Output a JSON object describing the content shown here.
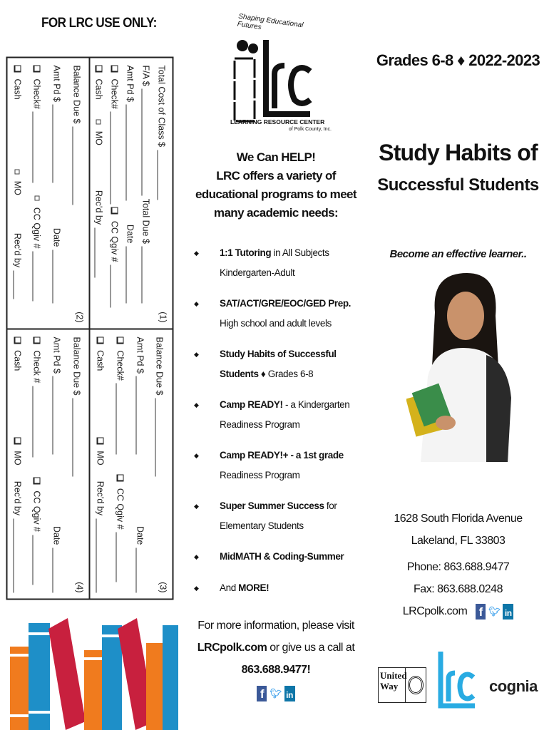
{
  "header": {
    "lrc_use_only": "FOR LRC USE ONLY:"
  },
  "form": {
    "sections": [
      {
        "number": "(1)",
        "rows": [
          [
            {
              "t": "Total Cost of Class $"
            },
            {
              "line": 70
            }
          ],
          [
            {
              "t": "F/A $"
            },
            {
              "line": 150
            },
            {
              "t": "Total Due $"
            },
            {
              "line": 80
            }
          ],
          [
            {
              "t": "Amt Pd $"
            },
            {
              "line": 135
            },
            {
              "gap": 25
            },
            {
              "t": "Date"
            },
            {
              "line": 80
            }
          ],
          [
            {
              "cb": "big"
            },
            {
              "t": "Check#"
            },
            {
              "line": 130
            },
            {
              "cb": "big"
            },
            {
              "t": "CC  Qgiv #"
            },
            {
              "line": 60
            }
          ],
          [
            {
              "cb": "big"
            },
            {
              "t": "Cash"
            },
            {
              "gap": 20
            },
            {
              "cb": "small"
            },
            {
              "t": "MO"
            },
            {
              "gap": 55
            },
            {
              "t": "Rec'd by"
            },
            {
              "line": 70
            }
          ]
        ]
      },
      {
        "number": "(2)",
        "rows": [
          [
            {
              "t": "Balance Due $"
            },
            {
              "line": 110
            }
          ],
          [
            {
              "t": "Amt Pd $"
            },
            {
              "line": 110
            },
            {
              "gap": 55
            },
            {
              "t": "Date"
            },
            {
              "line": 75
            }
          ],
          [
            {
              "cb": "big"
            },
            {
              "t": "Check#"
            },
            {
              "line": 100
            },
            {
              "gap": 10
            },
            {
              "cb": "small"
            },
            {
              "t": "CC  Qgiv #"
            },
            {
              "line": 70
            }
          ],
          [
            {
              "cb": "big"
            },
            {
              "t": "Cash"
            },
            {
              "gap": 90
            },
            {
              "cb": "small"
            },
            {
              "t": "MO"
            },
            {
              "gap": 45
            },
            {
              "t": "Rec'd by"
            },
            {
              "line": 40
            }
          ]
        ]
      },
      {
        "number": "(3)",
        "rows": [
          [
            {
              "t": "Balance Due $"
            },
            {
              "line": 110
            }
          ],
          [
            {
              "t": "Amt Pd $"
            },
            {
              "line": 130
            },
            {
              "gap": 110
            },
            {
              "t": "Date"
            },
            {
              "line": 75
            }
          ],
          [
            {
              "cb": "big"
            },
            {
              "t": "Check#"
            },
            {
              "line": 100
            },
            {
              "gap": 20
            },
            {
              "cb": "big"
            },
            {
              "t": "CC  Qgiv #"
            },
            {
              "line": 70
            }
          ],
          [
            {
              "cb": "big"
            },
            {
              "t": "Cash"
            },
            {
              "gap": 90
            },
            {
              "cb": "big"
            },
            {
              "t": "MO"
            },
            {
              "gap": 15
            },
            {
              "t": "Rec'd by"
            },
            {
              "line": 110
            }
          ]
        ]
      },
      {
        "number": "(4)",
        "rows": [
          [
            {
              "t": "Balance Due $"
            },
            {
              "line": 110
            }
          ],
          [
            {
              "t": "Amt Pd $"
            },
            {
              "line": 130
            },
            {
              "gap": 110
            },
            {
              "t": "Date"
            },
            {
              "line": 75
            }
          ],
          [
            {
              "cb": "big"
            },
            {
              "t": "Check #"
            },
            {
              "line": 100
            },
            {
              "gap": 20
            },
            {
              "cb": "big"
            },
            {
              "t": "CC  Qgiv #"
            },
            {
              "line": 70
            }
          ],
          [
            {
              "cb": "big"
            },
            {
              "t": "Cash"
            },
            {
              "gap": 90
            },
            {
              "cb": "big"
            },
            {
              "t": "MO"
            },
            {
              "gap": 15
            },
            {
              "t": "Rec'd by"
            },
            {
              "line": 110
            }
          ]
        ]
      }
    ]
  },
  "logo": {
    "arc_text": "Shaping Educational Futures",
    "letters": "lrc",
    "name": "LEARNING RESOURCE CENTER",
    "sub": "of Polk County, Inc."
  },
  "help": {
    "lines": [
      "We Can HELP!",
      "LRC offers a variety of",
      "educational programs to meet",
      "many academic needs:"
    ]
  },
  "programs": [
    {
      "bold": "1:1 Tutoring",
      "rest": " in All Subjects",
      "line2": "Kindergarten-Adult",
      "line2_bold": false
    },
    {
      "bold": "SAT/ACT/GRE/EOC/GED Prep.",
      "rest": "",
      "line2": "High school and adult levels",
      "line2_bold": false
    },
    {
      "bold": "Study Habits of Successful",
      "rest": "",
      "line2": "Students",
      "line2_rest": " ♦ Grades 6-8",
      "line2_bold": true
    },
    {
      "bold": "Camp READY!",
      "rest": " - a Kindergarten",
      "line2": "Readiness Program",
      "line2_bold": false
    },
    {
      "bold": "Camp READY!+ - a 1st grade",
      "rest": "",
      "line2": "Readiness Program",
      "line2_bold": false
    },
    {
      "bold": "Super Summer Success",
      "rest": " for",
      "line2": "Elementary Students",
      "line2_bold": false
    },
    {
      "bold": "MidMATH & Coding-Summer",
      "rest": "",
      "line2": "",
      "line2_bold": false
    },
    {
      "bold": "",
      "pre": "And ",
      "rest": "",
      "bold2": "MORE!",
      "line2": "",
      "line2_bold": false
    }
  ],
  "info": {
    "l1": "For more information, please visit",
    "site": "LRCpolk.com",
    "l2_rest": " or give us a call at",
    "phone": "863.688.9477!"
  },
  "social": {
    "facebook": "f",
    "twitter": "t",
    "linkedin": "in"
  },
  "cover": {
    "grades": "Grades 6-8 ♦ 2022-2023",
    "title1": "Study Habits of",
    "title2": "Successful Students",
    "tagline": "Become an effective learner.."
  },
  "contact": {
    "street": "1628 South Florida Avenue",
    "city": "Lakeland, FL  33803",
    "phone": "Phone: 863.688.9477",
    "fax": "Fax: 863.688.0248",
    "site": "LRCpolk.com"
  },
  "partners": {
    "united_way": "United Way",
    "lrc": "lrc",
    "cognia": "cognia"
  },
  "colors": {
    "lrc_blue": "#29abe2",
    "book_orange": "#f07b1e",
    "book_blue": "#1e8fc8",
    "book_red": "#c8203e",
    "facebook": "#3b5998",
    "twitter": "#55acee",
    "linkedin": "#0e76a8"
  }
}
